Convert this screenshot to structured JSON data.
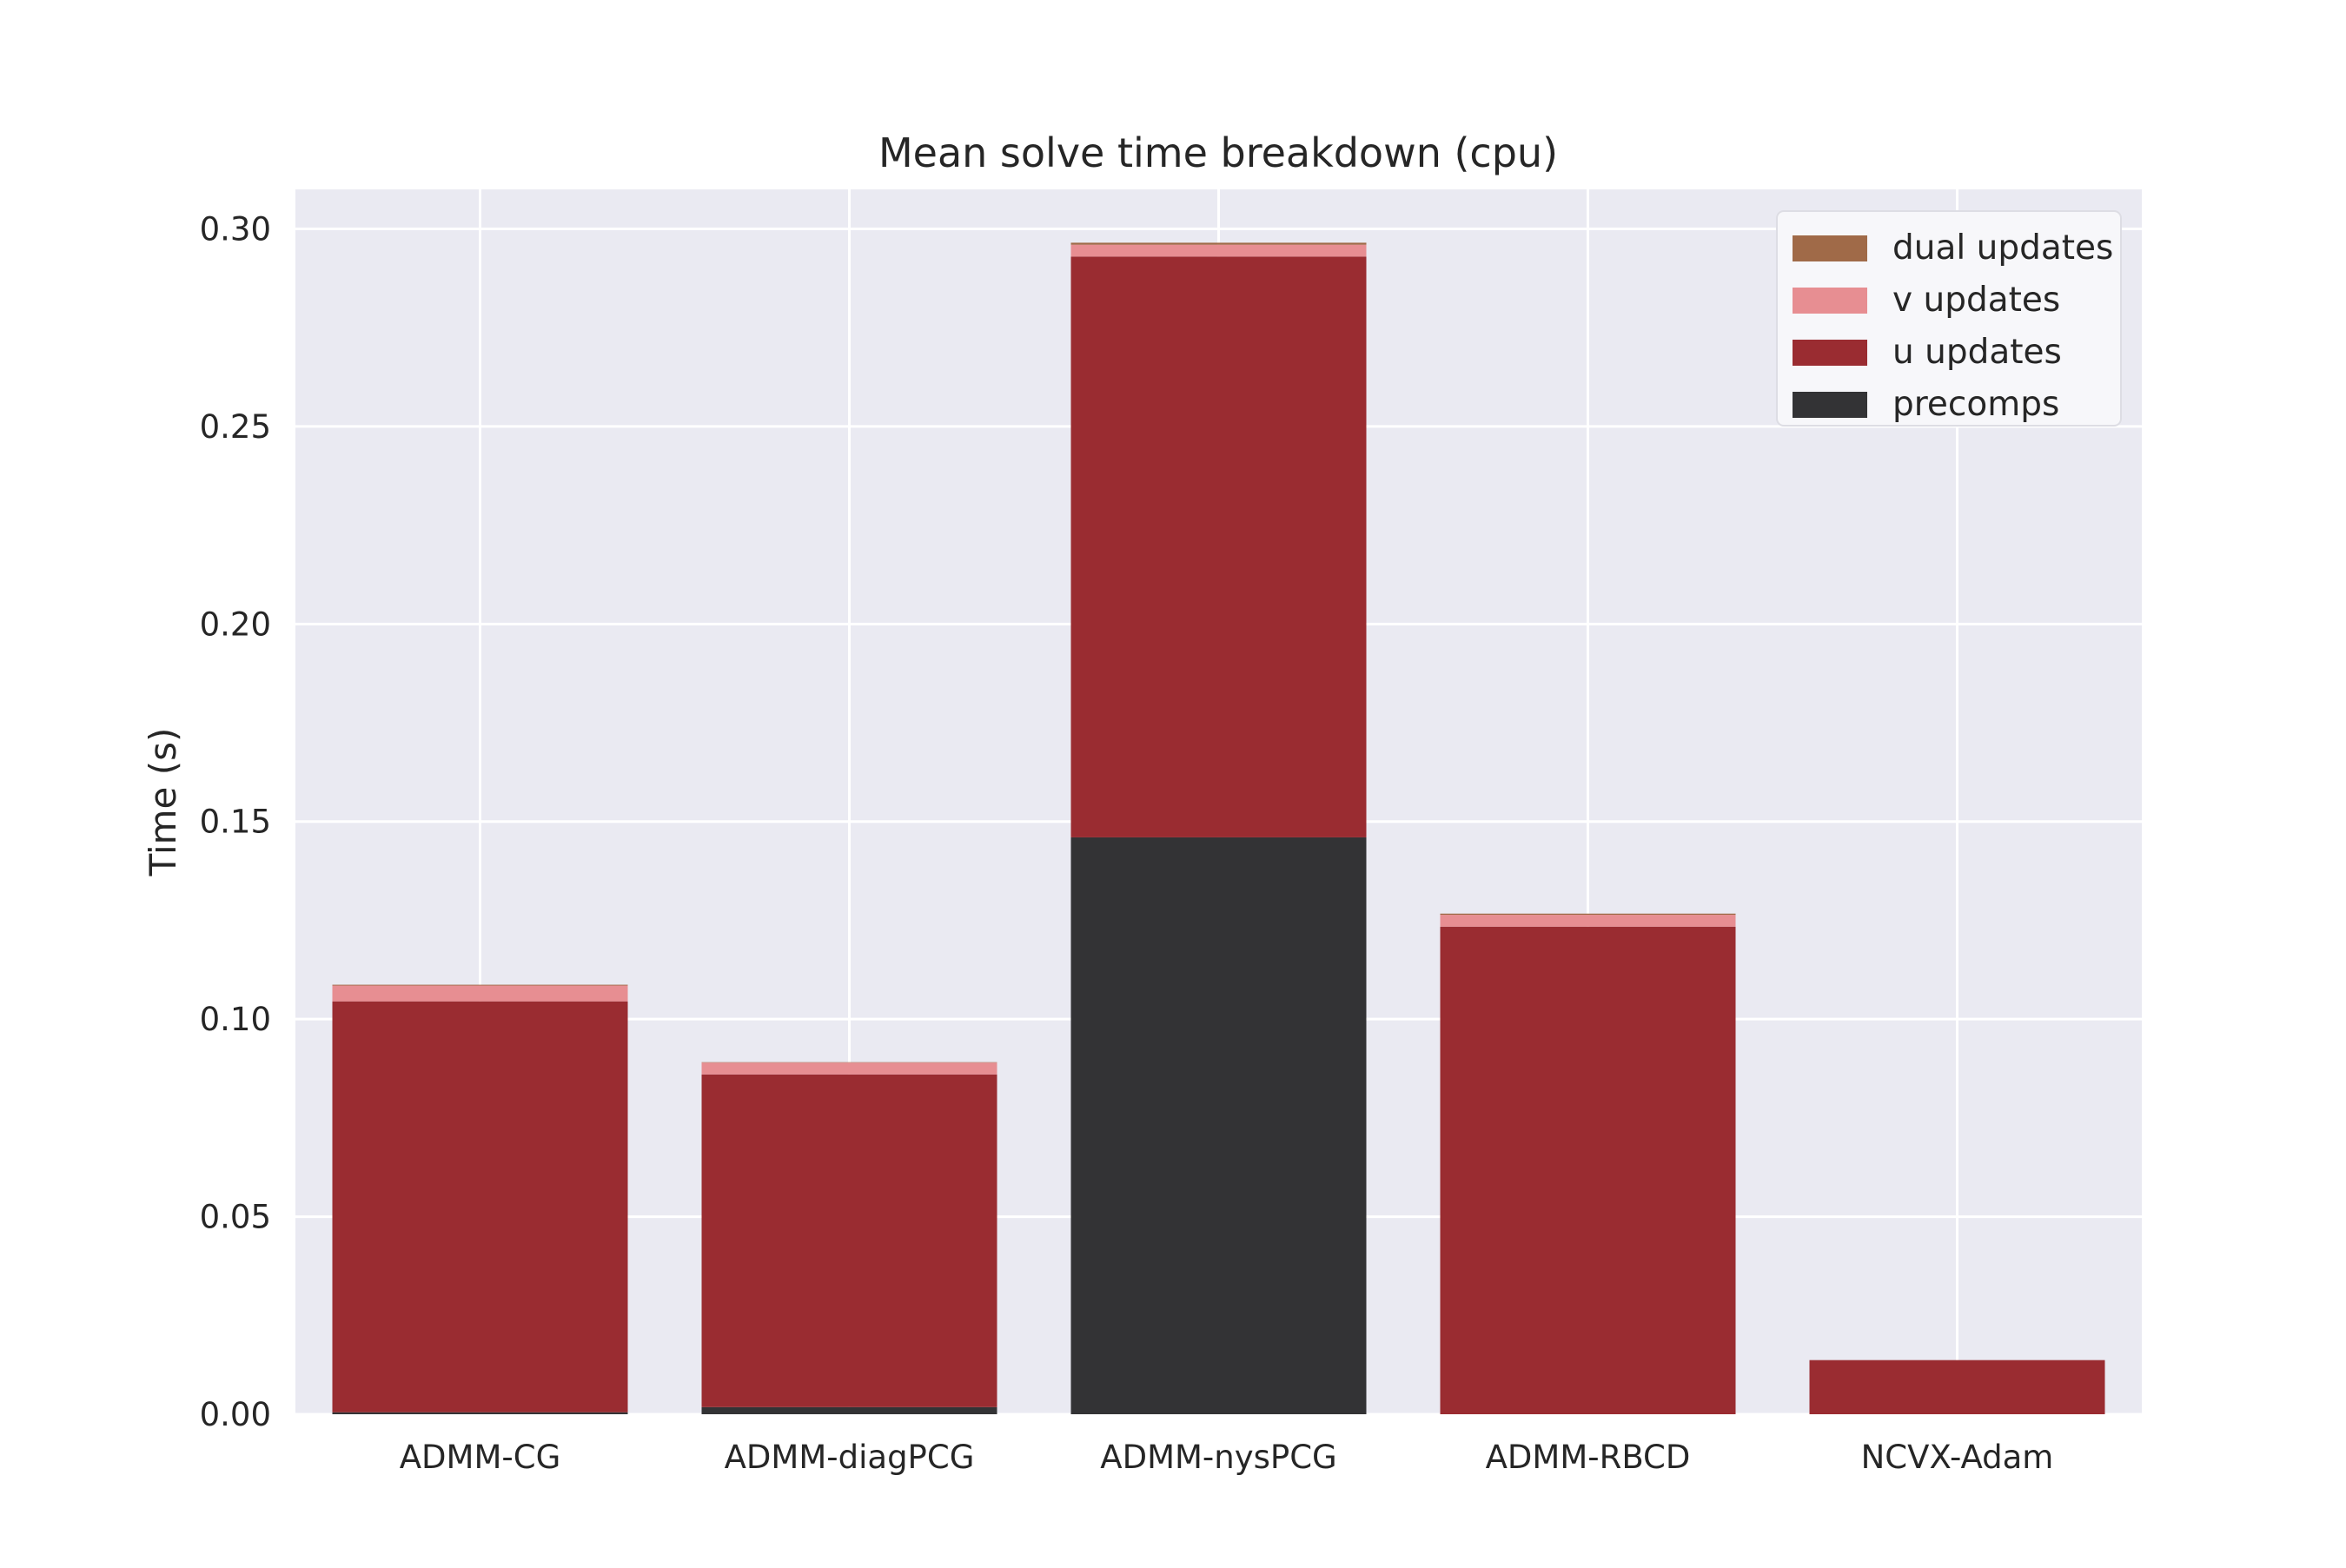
{
  "chart_data": {
    "type": "bar",
    "stacked": true,
    "title": "Mean solve time breakdown (cpu)",
    "xlabel": "",
    "ylabel": "Time (s)",
    "ylim": [
      0,
      0.31
    ],
    "yticks": [
      "0.00",
      "0.05",
      "0.10",
      "0.15",
      "0.20",
      "0.25",
      "0.30"
    ],
    "grid": true,
    "legend_position": "top-right",
    "categories": [
      "ADMM-CG",
      "ADMM-diagPCG",
      "ADMM-nysPCG",
      "ADMM-RBCD",
      "NCVX-Adam"
    ],
    "series": [
      {
        "name": "precomps",
        "color": "#333335",
        "values": [
          0.0005,
          0.0018,
          0.146,
          0.0,
          0.0
        ]
      },
      {
        "name": "u updates",
        "color": "#9a2c31",
        "values": [
          0.104,
          0.0842,
          0.147,
          0.1234,
          0.0137
        ]
      },
      {
        "name": "v updates",
        "color": "#e78e92",
        "values": [
          0.004,
          0.003,
          0.003,
          0.003,
          0.0
        ]
      },
      {
        "name": "dual updates",
        "color": "#a06a48",
        "values": [
          0.0002,
          0.0001,
          0.0005,
          0.0003,
          0.0
        ]
      }
    ],
    "legend_order": [
      "dual updates",
      "v updates",
      "u updates",
      "precomps"
    ]
  },
  "colors": {
    "plot_background": "#eaeaf2",
    "grid": "#ffffff",
    "legend_background": "#f7f7fa",
    "text": "#262626"
  }
}
